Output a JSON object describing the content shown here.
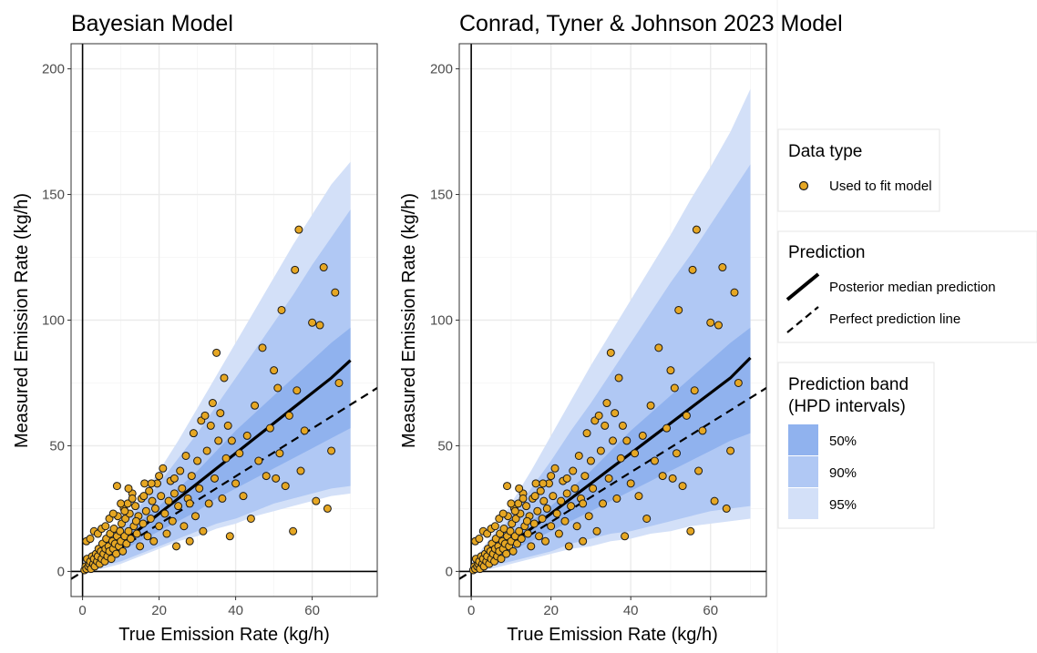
{
  "colors": {
    "point_fill": "#e6a723",
    "point_stroke": "#1a1a1a",
    "band50": "#90b2ee",
    "band90": "#b0c8f4",
    "band95": "#d3e0f8",
    "grid_major": "#ebebeb",
    "grid_minor": "#f5f5f5"
  },
  "chart_data": [
    {
      "type": "scatter",
      "title": "Bayesian Model",
      "xlabel": "True Emission Rate (kg/h)",
      "ylabel": "Measured Emission Rate (kg/h)",
      "xlim": [
        -3,
        77
      ],
      "ylim": [
        -10,
        210
      ],
      "xticks": [
        "0",
        "20",
        "40",
        "60"
      ],
      "yticks": [
        "0",
        "50",
        "100",
        "150",
        "200"
      ],
      "grid": true,
      "bands": {
        "x": [
          0,
          5,
          10,
          15,
          20,
          25,
          30,
          35,
          40,
          45,
          50,
          55,
          60,
          65,
          70
        ],
        "q95": [
          [
            0,
            2
          ],
          [
            1,
            10
          ],
          [
            3,
            19
          ],
          [
            6,
            29
          ],
          [
            9,
            40
          ],
          [
            12,
            52
          ],
          [
            14,
            65
          ],
          [
            17,
            78
          ],
          [
            19,
            91
          ],
          [
            22,
            104
          ],
          [
            24,
            117
          ],
          [
            26,
            130
          ],
          [
            28,
            142
          ],
          [
            30,
            154
          ],
          [
            31,
            163
          ]
        ],
        "q90": [
          [
            0,
            2
          ],
          [
            2,
            9
          ],
          [
            4,
            17
          ],
          [
            7,
            26
          ],
          [
            10,
            35
          ],
          [
            13,
            45
          ],
          [
            16,
            55
          ],
          [
            19,
            66
          ],
          [
            21,
            77
          ],
          [
            24,
            88
          ],
          [
            27,
            99
          ],
          [
            29,
            110
          ],
          [
            31,
            122
          ],
          [
            33,
            133
          ],
          [
            34,
            144
          ]
        ],
        "q50": [
          [
            1,
            1
          ],
          [
            4,
            7
          ],
          [
            8,
            13
          ],
          [
            12,
            20
          ],
          [
            16,
            26
          ],
          [
            20,
            33
          ],
          [
            24,
            40
          ],
          [
            29,
            48
          ],
          [
            33,
            56
          ],
          [
            37,
            63
          ],
          [
            41,
            70
          ],
          [
            45,
            77
          ],
          [
            49,
            84
          ],
          [
            53,
            91
          ],
          [
            57,
            97
          ]
        ]
      },
      "median_line": {
        "x": [
          0,
          5,
          10,
          15,
          20,
          25,
          30,
          35,
          40,
          45,
          50,
          55,
          60,
          65,
          70
        ],
        "y": [
          0,
          5,
          11,
          17,
          23,
          29,
          35,
          41,
          47,
          53,
          59,
          65,
          71,
          77,
          84
        ]
      },
      "perfect_line": {
        "x": [
          -3,
          77
        ],
        "y": [
          -3,
          73
        ]
      }
    },
    {
      "type": "scatter",
      "title": "Conrad, Tyner & Johnson 2023 Model",
      "xlabel": "True Emission Rate (kg/h)",
      "ylabel": "Measured Emission Rate (kg/h)",
      "xlim": [
        -3,
        74
      ],
      "ylim": [
        -10,
        210
      ],
      "xticks": [
        "0",
        "20",
        "40",
        "60"
      ],
      "yticks": [
        "0",
        "50",
        "100",
        "150",
        "200"
      ],
      "grid": true,
      "bands": {
        "x": [
          0,
          5,
          10,
          15,
          20,
          25,
          30,
          35,
          40,
          45,
          50,
          55,
          60,
          65,
          70
        ],
        "q95": [
          [
            0,
            3
          ],
          [
            1,
            14
          ],
          [
            3,
            27
          ],
          [
            5,
            40
          ],
          [
            7,
            54
          ],
          [
            9,
            68
          ],
          [
            10,
            82
          ],
          [
            12,
            95
          ],
          [
            13,
            108
          ],
          [
            15,
            121
          ],
          [
            16,
            134
          ],
          [
            18,
            148
          ],
          [
            19,
            161
          ],
          [
            20,
            175
          ],
          [
            21,
            192
          ]
        ],
        "q90": [
          [
            0,
            2
          ],
          [
            2,
            11
          ],
          [
            4,
            22
          ],
          [
            6,
            33
          ],
          [
            8,
            44
          ],
          [
            11,
            56
          ],
          [
            13,
            67
          ],
          [
            15,
            79
          ],
          [
            16,
            91
          ],
          [
            18,
            103
          ],
          [
            20,
            115
          ],
          [
            22,
            126
          ],
          [
            24,
            138
          ],
          [
            25,
            150
          ],
          [
            26,
            162
          ]
        ],
        "q50": [
          [
            1,
            1
          ],
          [
            4,
            7
          ],
          [
            8,
            13
          ],
          [
            12,
            20
          ],
          [
            16,
            26
          ],
          [
            20,
            33
          ],
          [
            24,
            40
          ],
          [
            28,
            48
          ],
          [
            32,
            56
          ],
          [
            36,
            63
          ],
          [
            40,
            70
          ],
          [
            44,
            77
          ],
          [
            48,
            84
          ],
          [
            52,
            91
          ],
          [
            55,
            97
          ]
        ]
      },
      "median_line": {
        "x": [
          0,
          5,
          10,
          15,
          20,
          25,
          30,
          35,
          40,
          45,
          50,
          55,
          60,
          65,
          70
        ],
        "y": [
          0,
          5,
          11,
          17,
          23,
          29,
          35,
          41,
          47,
          53,
          59,
          65,
          71,
          77,
          85
        ]
      },
      "perfect_line": {
        "x": [
          -3,
          74
        ],
        "y": [
          -3,
          73
        ]
      }
    }
  ],
  "points": [
    [
      0.5,
      0.5
    ],
    [
      0.8,
      2
    ],
    [
      1,
      1
    ],
    [
      1.2,
      5
    ],
    [
      1.5,
      2
    ],
    [
      1.8,
      3
    ],
    [
      2,
      4
    ],
    [
      2.2,
      1
    ],
    [
      2.5,
      6
    ],
    [
      2.8,
      3
    ],
    [
      3,
      5
    ],
    [
      3.2,
      2
    ],
    [
      3.5,
      7
    ],
    [
      3.8,
      4
    ],
    [
      4,
      6
    ],
    [
      4.2,
      9
    ],
    [
      4.5,
      3
    ],
    [
      4.8,
      8
    ],
    [
      5,
      5
    ],
    [
      5.2,
      11
    ],
    [
      5.5,
      7
    ],
    [
      5.8,
      4
    ],
    [
      6,
      9
    ],
    [
      6.2,
      13
    ],
    [
      6.5,
      6
    ],
    [
      6.8,
      10
    ],
    [
      7,
      8
    ],
    [
      7.2,
      15
    ],
    [
      7.5,
      5
    ],
    [
      7.8,
      12
    ],
    [
      8,
      9
    ],
    [
      8.2,
      17
    ],
    [
      8.5,
      11
    ],
    [
      8.8,
      7
    ],
    [
      9,
      14
    ],
    [
      9.2,
      22
    ],
    [
      9.5,
      10
    ],
    [
      9.8,
      16
    ],
    [
      10,
      12
    ],
    [
      10.2,
      19
    ],
    [
      10.5,
      8
    ],
    [
      10.8,
      25
    ],
    [
      11,
      14
    ],
    [
      11.2,
      21
    ],
    [
      11.5,
      11
    ],
    [
      11.8,
      27
    ],
    [
      12,
      16
    ],
    [
      12.3,
      23
    ],
    [
      12.6,
      13
    ],
    [
      13,
      31
    ],
    [
      13.4,
      18
    ],
    [
      13.8,
      26
    ],
    [
      14.2,
      15
    ],
    [
      14.6,
      22
    ],
    [
      15,
      10
    ],
    [
      15.4,
      29
    ],
    [
      15.8,
      19
    ],
    [
      16.2,
      35
    ],
    [
      16.6,
      24
    ],
    [
      17,
      14
    ],
    [
      17.4,
      32
    ],
    [
      17.8,
      21
    ],
    [
      18.2,
      28
    ],
    [
      18.6,
      12
    ],
    [
      19,
      25
    ],
    [
      19.5,
      35
    ],
    [
      20,
      18
    ],
    [
      20.5,
      30
    ],
    [
      21,
      41
    ],
    [
      21.5,
      23
    ],
    [
      22,
      15
    ],
    [
      22.5,
      28
    ],
    [
      23,
      36
    ],
    [
      23.5,
      20
    ],
    [
      24,
      31
    ],
    [
      24.5,
      10
    ],
    [
      25,
      26
    ],
    [
      25.5,
      40
    ],
    [
      26,
      33
    ],
    [
      26.5,
      18
    ],
    [
      27,
      46
    ],
    [
      27.5,
      29
    ],
    [
      28,
      12
    ],
    [
      28.5,
      38
    ],
    [
      29,
      55
    ],
    [
      29.5,
      22
    ],
    [
      30,
      44
    ],
    [
      30.5,
      33
    ],
    [
      31,
      60
    ],
    [
      31.5,
      16
    ],
    [
      32,
      62
    ],
    [
      32.5,
      48
    ],
    [
      33,
      27
    ],
    [
      33.5,
      58
    ],
    [
      34,
      67
    ],
    [
      34.5,
      37
    ],
    [
      35,
      87
    ],
    [
      35.5,
      52
    ],
    [
      36,
      63
    ],
    [
      36.5,
      29
    ],
    [
      37,
      77
    ],
    [
      37.5,
      45
    ],
    [
      38,
      58
    ],
    [
      38.5,
      14
    ],
    [
      39,
      52
    ],
    [
      40,
      35
    ],
    [
      41,
      47
    ],
    [
      42,
      30
    ],
    [
      43,
      54
    ],
    [
      44,
      21
    ],
    [
      45,
      66
    ],
    [
      46,
      44
    ],
    [
      47,
      89
    ],
    [
      48,
      38
    ],
    [
      49,
      57
    ],
    [
      50,
      80
    ],
    [
      50.5,
      37
    ],
    [
      51,
      73
    ],
    [
      51.5,
      47
    ],
    [
      52,
      104
    ],
    [
      53,
      34
    ],
    [
      54,
      62
    ],
    [
      55,
      16
    ],
    [
      55.5,
      120
    ],
    [
      56,
      72
    ],
    [
      56.5,
      136
    ],
    [
      57,
      40
    ],
    [
      58,
      56
    ],
    [
      60,
      99
    ],
    [
      61,
      28
    ],
    [
      62,
      98
    ],
    [
      63,
      121
    ],
    [
      64,
      25
    ],
    [
      65,
      48
    ],
    [
      66,
      111
    ],
    [
      67,
      75
    ],
    [
      1,
      12
    ],
    [
      2,
      13
    ],
    [
      3,
      16
    ],
    [
      4,
      15
    ],
    [
      5,
      17
    ],
    [
      6,
      18
    ],
    [
      7,
      21
    ],
    [
      8,
      23
    ],
    [
      9,
      34
    ],
    [
      10,
      27
    ],
    [
      11,
      24
    ],
    [
      12,
      33
    ],
    [
      13,
      29
    ],
    [
      14,
      20
    ],
    [
      16,
      30
    ],
    [
      18,
      35
    ],
    [
      20,
      38
    ],
    [
      24,
      37
    ],
    [
      28,
      27
    ]
  ],
  "legend": {
    "data_type": {
      "title": "Data type",
      "item": "Used to fit model"
    },
    "prediction": {
      "title": "Prediction",
      "median": "Posterior median prediction",
      "perfect": "Perfect prediction line"
    },
    "bands": {
      "title_line1": "Prediction band",
      "title_line2": "(HPD intervals)",
      "items": [
        "50%",
        "90%",
        "95%"
      ]
    }
  }
}
